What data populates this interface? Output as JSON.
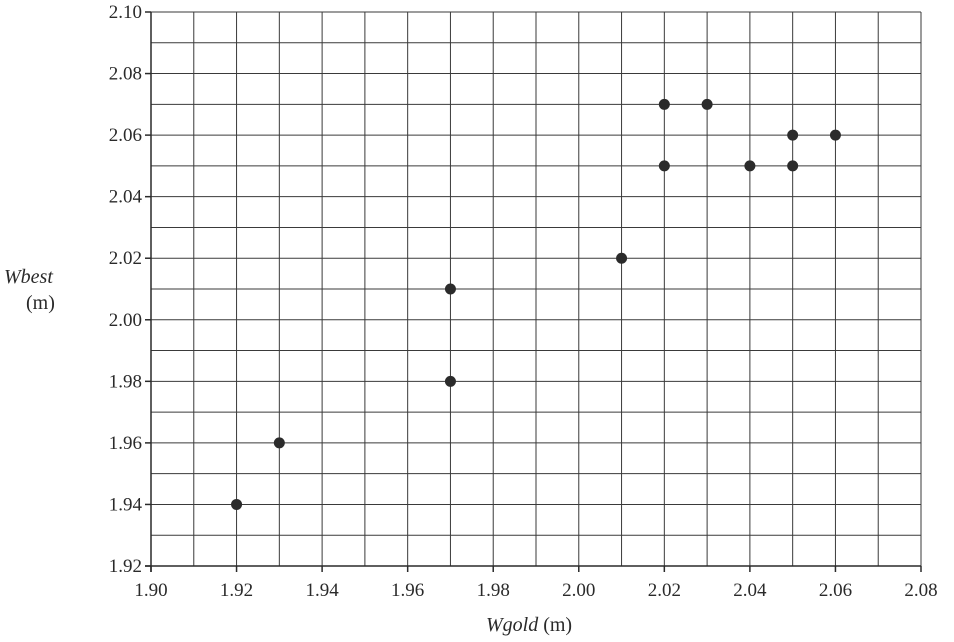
{
  "chart_data": {
    "type": "scatter",
    "x_axis": {
      "label": "Wgold",
      "unit": "(m)",
      "min": 1.9,
      "max": 2.08,
      "major_step": 0.02,
      "minor_step": 0.01,
      "tick_labels": [
        "1.90",
        "1.92",
        "1.94",
        "1.96",
        "1.98",
        "2.00",
        "2.02",
        "2.04",
        "2.06",
        "2.08"
      ]
    },
    "y_axis": {
      "label": "Wbest",
      "unit": "(m)",
      "min": 1.92,
      "max": 2.1,
      "major_step": 0.02,
      "minor_step": 0.01,
      "tick_labels": [
        "1.92",
        "1.94",
        "1.96",
        "1.98",
        "2.00",
        "2.02",
        "2.04",
        "2.06",
        "2.08",
        "2.10"
      ]
    },
    "grid": true,
    "series": [
      {
        "points": [
          {
            "x": 1.92,
            "y": 1.94
          },
          {
            "x": 1.93,
            "y": 1.96
          },
          {
            "x": 1.97,
            "y": 1.98
          },
          {
            "x": 1.97,
            "y": 2.01
          },
          {
            "x": 2.01,
            "y": 2.02
          },
          {
            "x": 2.02,
            "y": 2.05
          },
          {
            "x": 2.02,
            "y": 2.07
          },
          {
            "x": 2.03,
            "y": 2.07
          },
          {
            "x": 2.04,
            "y": 2.05
          },
          {
            "x": 2.05,
            "y": 2.05
          },
          {
            "x": 2.05,
            "y": 2.06
          },
          {
            "x": 2.06,
            "y": 2.06
          }
        ]
      }
    ],
    "colors": {
      "marker": "#2b2b2b",
      "grid": "#3a3a3a",
      "axis": "#2a2a2a"
    }
  }
}
